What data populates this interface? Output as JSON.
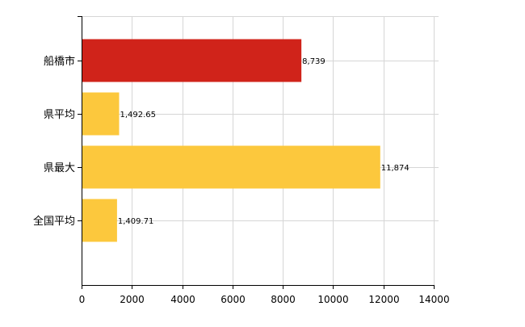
{
  "chart_data": {
    "type": "bar",
    "orientation": "horizontal",
    "categories": [
      "船橋市",
      "県平均",
      "県最大",
      "全国平均"
    ],
    "values": [
      8739,
      1492.65,
      11874,
      1409.71
    ],
    "value_labels": [
      "8,739",
      "1,492.65",
      "11,874",
      "1,409.71"
    ],
    "bar_colors": [
      "#d0231a",
      "#fcc83d",
      "#fcc83d",
      "#fcc83d"
    ],
    "xlim": [
      0,
      14000
    ],
    "xticks": [
      0,
      2000,
      4000,
      6000,
      8000,
      10000,
      12000,
      14000
    ],
    "xtick_labels": [
      "0",
      "2000",
      "4000",
      "6000",
      "8000",
      "10000",
      "12000",
      "14000"
    ],
    "grid": true,
    "grid_color": "#d6d6d6",
    "axis_color": "#000000",
    "title": "",
    "xlabel": "",
    "ylabel": ""
  }
}
